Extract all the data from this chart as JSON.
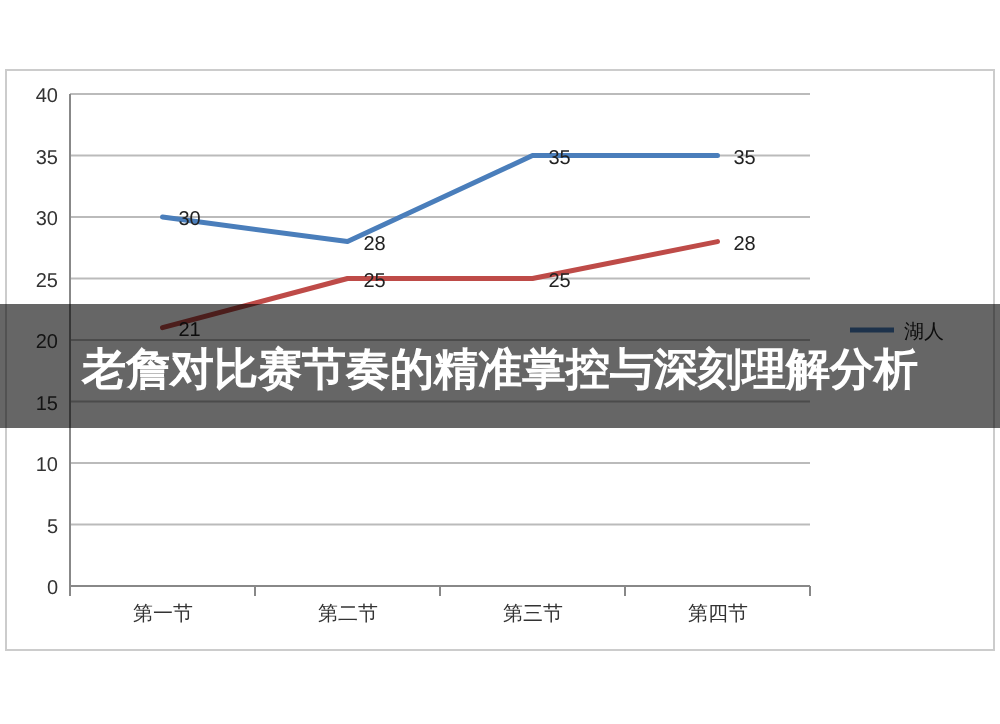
{
  "chart_data": {
    "type": "line",
    "title": "老詹对比赛节奏的精准掌控与深刻理解分析",
    "categories": [
      "第一节",
      "第二节",
      "第三节",
      "第四节"
    ],
    "series": [
      {
        "name": "湖人",
        "color": "#4a7ebb",
        "values": [
          30,
          28,
          35,
          35
        ]
      },
      {
        "color": "#be4b48",
        "values": [
          21,
          25,
          25,
          28
        ]
      }
    ],
    "ylim": [
      0,
      40
    ],
    "yticks": [
      0,
      5,
      10,
      15,
      20,
      25,
      30,
      35,
      40
    ],
    "grid": "y",
    "legend": "right",
    "data_labels": true,
    "marker": "none",
    "line_style": "solid"
  }
}
